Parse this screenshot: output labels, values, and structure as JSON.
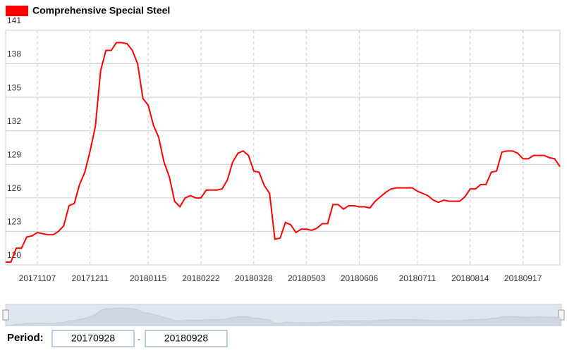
{
  "chart_data": {
    "type": "line",
    "categories": [
      null,
      null,
      null,
      null,
      null,
      null,
      "20171107",
      null,
      null,
      null,
      null,
      null,
      null,
      null,
      null,
      null,
      "20171211",
      null,
      null,
      null,
      null,
      null,
      null,
      null,
      null,
      null,
      null,
      "20180115",
      null,
      null,
      null,
      null,
      null,
      null,
      null,
      null,
      null,
      "20180222",
      null,
      null,
      null,
      null,
      null,
      null,
      null,
      null,
      null,
      "20180328",
      null,
      null,
      null,
      null,
      null,
      null,
      null,
      null,
      null,
      "20180503",
      null,
      null,
      null,
      null,
      null,
      null,
      null,
      null,
      null,
      "20180606",
      null,
      null,
      null,
      null,
      null,
      null,
      null,
      null,
      null,
      null,
      "20180711",
      null,
      null,
      null,
      null,
      null,
      null,
      null,
      null,
      null,
      "20180814",
      null,
      null,
      null,
      null,
      null,
      null,
      null,
      null,
      null,
      "20180917",
      null,
      null,
      null,
      null,
      null,
      null,
      null
    ],
    "series": [
      {
        "name": "Comprehensive  Special Steel",
        "color": "#ff0000",
        "values": [
          120.25,
          120.25,
          121.5,
          121.5,
          122.5,
          122.6,
          122.9,
          122.8,
          122.7,
          122.7,
          123.0,
          123.5,
          125.3,
          125.5,
          127.2,
          128.3,
          130.2,
          132.4,
          137.4,
          139.2,
          139.2,
          139.9,
          139.9,
          139.8,
          139.2,
          138.0,
          134.9,
          134.3,
          132.5,
          131.4,
          129.2,
          127.9,
          125.7,
          125.2,
          126.0,
          126.2,
          126.0,
          126.0,
          126.7,
          126.7,
          126.7,
          126.8,
          127.6,
          129.2,
          130.0,
          130.2,
          129.8,
          128.4,
          128.3,
          127.1,
          126.4,
          122.3,
          122.4,
          123.8,
          123.6,
          122.9,
          123.2,
          123.2,
          123.1,
          123.3,
          123.7,
          123.7,
          125.4,
          125.4,
          125.0,
          125.3,
          125.3,
          125.2,
          125.2,
          125.1,
          125.7,
          126.1,
          126.5,
          126.8,
          126.9,
          126.9,
          126.9,
          126.9,
          126.6,
          126.4,
          126.2,
          125.8,
          125.6,
          125.8,
          125.7,
          125.7,
          125.7,
          126.1,
          126.8,
          126.8,
          127.2,
          127.2,
          128.3,
          128.4,
          130.1,
          130.2,
          130.2,
          130.0,
          129.5,
          129.5,
          129.8,
          129.8,
          129.8,
          129.6,
          129.5,
          128.8
        ]
      }
    ],
    "ylim": [
      120,
      141
    ],
    "yticks": [
      120,
      123,
      126,
      129,
      132,
      135,
      138,
      141
    ],
    "grid": true
  },
  "controls": {
    "period_label": "Period:",
    "start": "20170928",
    "separator": "-",
    "end": "20180928"
  }
}
